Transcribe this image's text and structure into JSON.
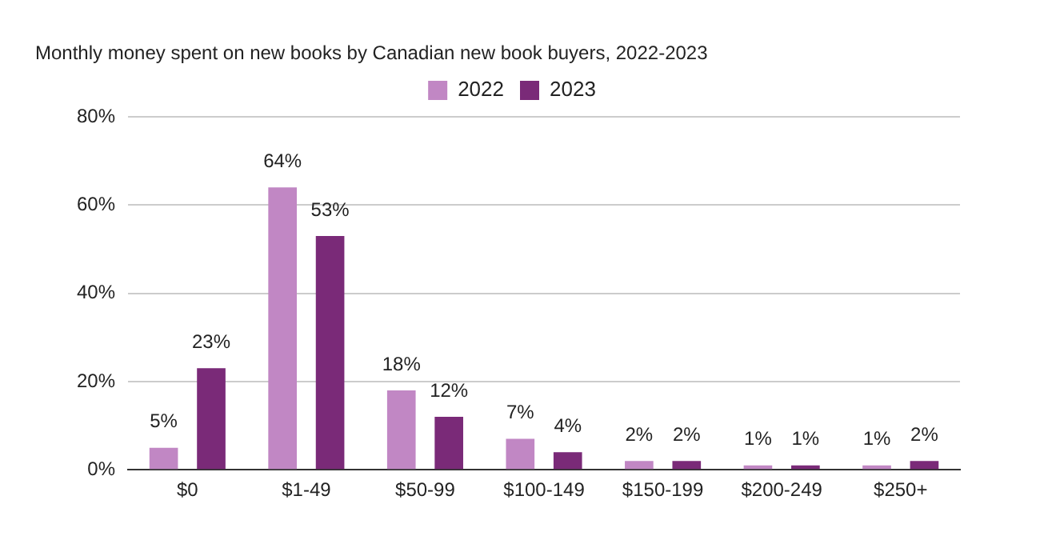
{
  "chart_data": {
    "type": "bar",
    "title": "Monthly money spent on new books by Canadian new book buyers, 2022-2023",
    "categories": [
      "$0",
      "$1-49",
      "$50-99",
      "$100-149",
      "$150-199",
      "$200-249",
      "$250+"
    ],
    "series": [
      {
        "name": "2022",
        "color": "#c187c4",
        "values": [
          5,
          64,
          18,
          7,
          2,
          1,
          1
        ],
        "value_labels": [
          "5%",
          "64%",
          "18%",
          "7%",
          "2%",
          "1%",
          "1%"
        ]
      },
      {
        "name": "2023",
        "color": "#7a2a78",
        "values": [
          23,
          53,
          12,
          4,
          2,
          1,
          2
        ],
        "value_labels": [
          "23%",
          "53%",
          "12%",
          "4%",
          "2%",
          "1%",
          "2%"
        ]
      }
    ],
    "ylim": [
      0,
      80
    ],
    "yticks": [
      {
        "value": 0,
        "label": "0%"
      },
      {
        "value": 20,
        "label": "20%"
      },
      {
        "value": 40,
        "label": "40%"
      },
      {
        "value": 60,
        "label": "60%"
      },
      {
        "value": 80,
        "label": "80%"
      }
    ],
    "grid": "y",
    "legend": "top"
  }
}
